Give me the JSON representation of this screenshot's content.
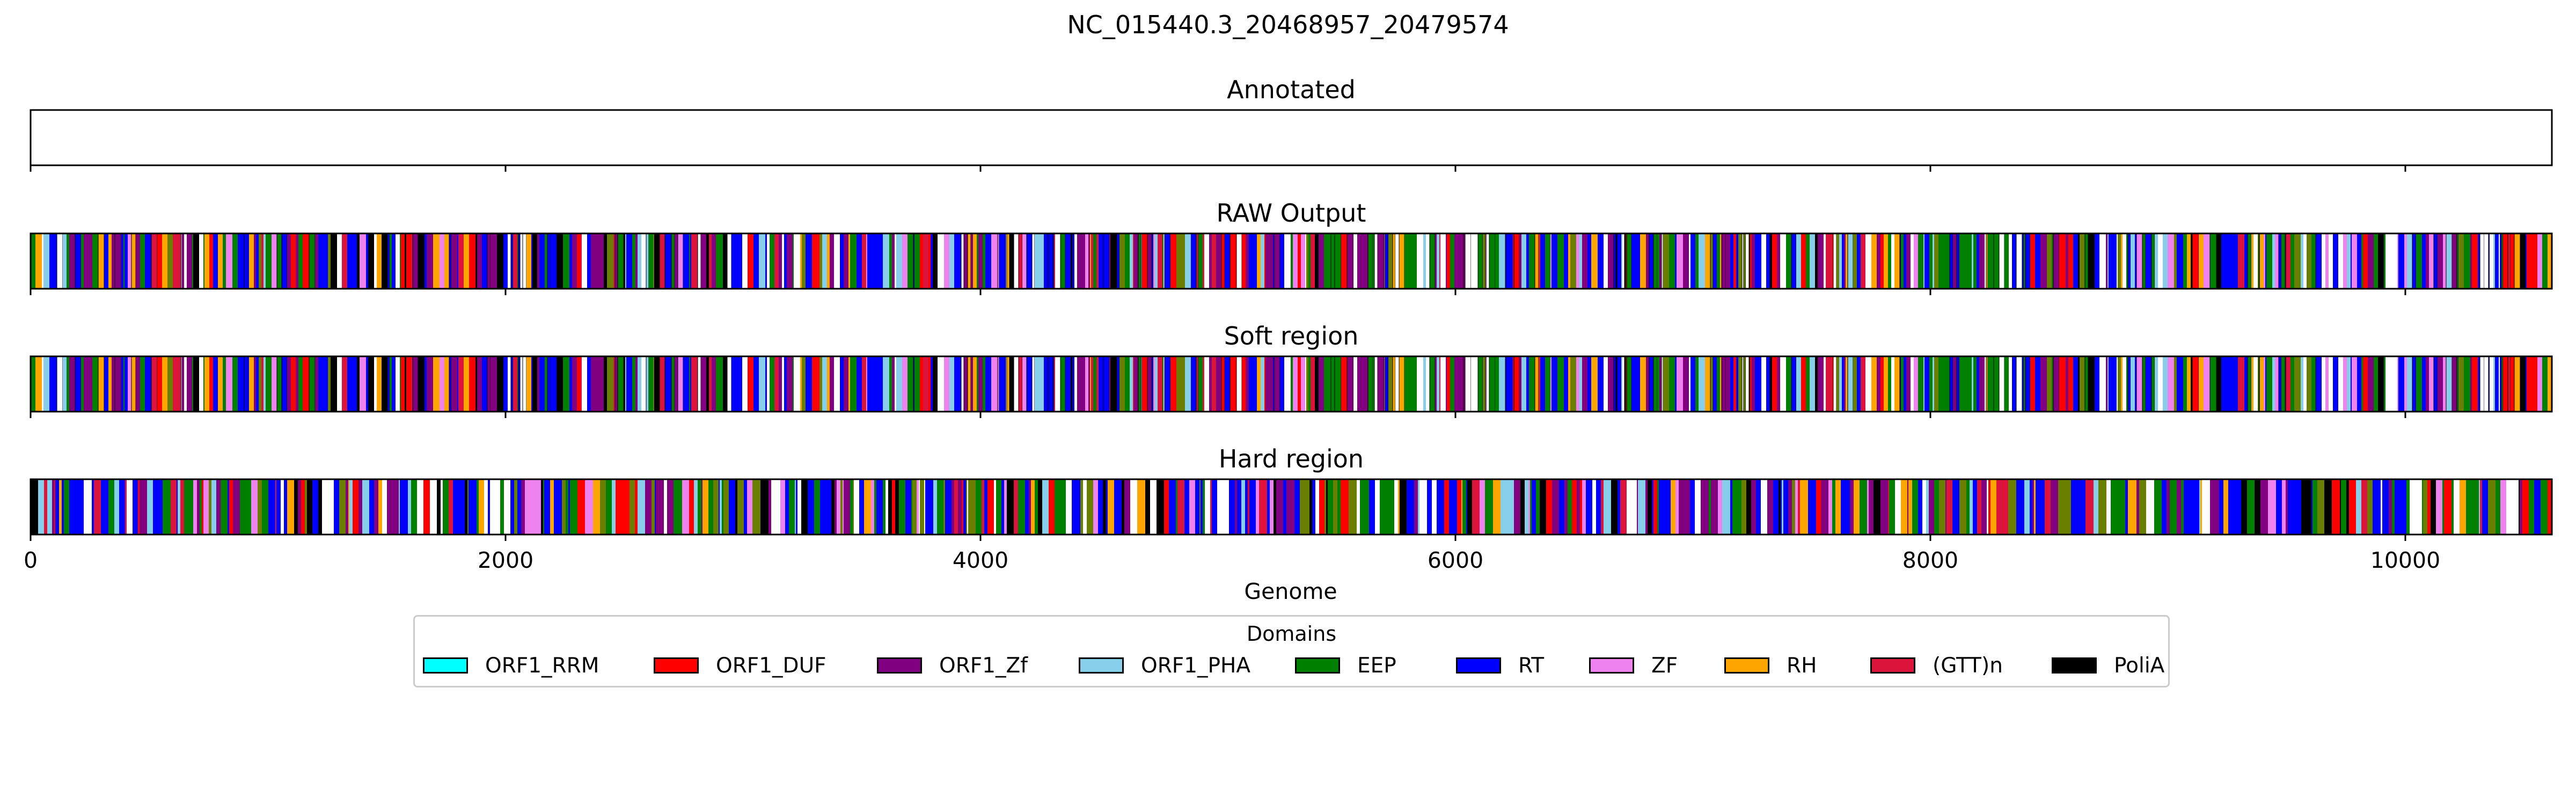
{
  "chart_data": {
    "type": "heatmap",
    "title": "NC_015440.3_20468957_20479574",
    "xlabel": "Genome",
    "xlim": [
      0,
      10617
    ],
    "xticks": [
      0,
      2000,
      4000,
      6000,
      8000,
      10000
    ],
    "tick_labels": [
      "0",
      "2000",
      "4000",
      "6000",
      "8000",
      "10000"
    ],
    "panels": [
      {
        "title": "Annotated",
        "segments": []
      },
      {
        "title": "RAW Output",
        "pattern": "mixed_domains"
      },
      {
        "title": "Soft region",
        "pattern": "mixed_domains"
      },
      {
        "title": "Hard region",
        "pattern": "mixed_domains_contiguous"
      }
    ],
    "legend": {
      "title": "Domains",
      "placement": "bottom-center",
      "items": [
        {
          "label": "ORF1_RRM",
          "color": "#00ffff"
        },
        {
          "label": "ORF1_DUF",
          "color": "#ff0000"
        },
        {
          "label": "ORF1_Zf",
          "color": "#800080"
        },
        {
          "label": "ORF1_PHA",
          "color": "#87ceeb"
        },
        {
          "label": "EEP",
          "color": "#008000"
        },
        {
          "label": "RT",
          "color": "#0000ff"
        },
        {
          "label": "ZF",
          "color": "#ee82ee"
        },
        {
          "label": "RH",
          "color": "#ffa500"
        },
        {
          "label": "(GTT)n",
          "color": "#dc143c"
        },
        {
          "label": "PoliA",
          "color": "#000000"
        }
      ]
    }
  }
}
